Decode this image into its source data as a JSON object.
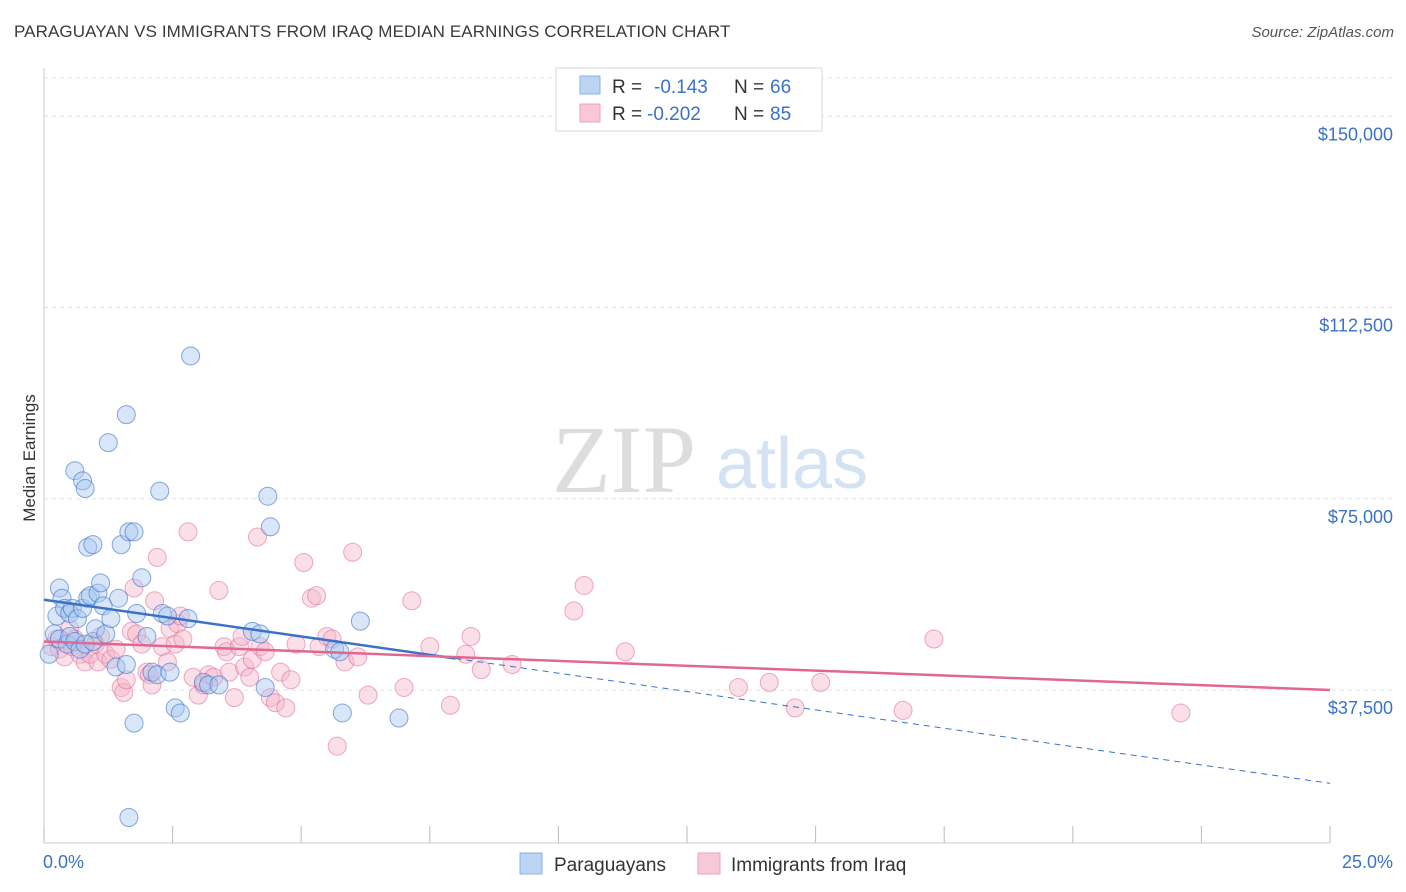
{
  "title": "PARAGUAYAN VS IMMIGRANTS FROM IRAQ MEDIAN EARNINGS CORRELATION CHART",
  "source": "Source: ZipAtlas.com",
  "watermark": {
    "zip": "ZIP",
    "atlas": "atlas"
  },
  "colors": {
    "blue": "#3a72c8",
    "blue_fill": "#a8c8f0",
    "pink": "#e06890",
    "pink_fill": "#f5b8cc",
    "grid": "#e2e2e2",
    "axis_text": "#3a72c8"
  },
  "legend": {
    "row1": {
      "r_label": "R =",
      "r_value": "-0.143",
      "n_label": "N =",
      "n_value": "66"
    },
    "row2": {
      "r_label": "R =",
      "r_value": "-0.202",
      "n_label": "N =",
      "n_value": "85"
    }
  },
  "bottom_legend": {
    "series1": "Paraguayans",
    "series2": "Immigrants from Iraq"
  },
  "chart_data": {
    "type": "scatter",
    "title": "PARAGUAYAN VS IMMIGRANTS FROM IRAQ MEDIAN EARNINGS CORRELATION CHART",
    "xlabel": "",
    "ylabel": "Median Earnings",
    "xlim": [
      0,
      25
    ],
    "ylim": [
      7500,
      157500
    ],
    "x_tick_labels": {
      "min": "0.0%",
      "max": "25.0%"
    },
    "y_ticks": [
      {
        "value": 37500,
        "label": "$37,500"
      },
      {
        "value": 75000,
        "label": "$75,000"
      },
      {
        "value": 112500,
        "label": "$112,500"
      },
      {
        "value": 150000,
        "label": "$150,000"
      }
    ],
    "series": [
      {
        "name": "Paraguayans",
        "color": "#3a72c8",
        "trend": {
          "x0": 0,
          "y0": 55200,
          "x_solid_end": 8.0,
          "x1": 25,
          "y1": 19200
        },
        "points": [
          [
            0.1,
            44500
          ],
          [
            0.2,
            48500
          ],
          [
            0.25,
            52000
          ],
          [
            0.3,
            47500
          ],
          [
            0.3,
            57500
          ],
          [
            0.35,
            55500
          ],
          [
            0.4,
            53500
          ],
          [
            0.45,
            46500
          ],
          [
            0.5,
            48000
          ],
          [
            0.5,
            52500
          ],
          [
            0.55,
            53500
          ],
          [
            0.6,
            47000
          ],
          [
            0.65,
            51500
          ],
          [
            0.7,
            45500
          ],
          [
            0.75,
            53500
          ],
          [
            0.8,
            46500
          ],
          [
            0.85,
            55500
          ],
          [
            0.9,
            56000
          ],
          [
            0.95,
            47000
          ],
          [
            1.0,
            49500
          ],
          [
            0.6,
            80500
          ],
          [
            0.75,
            78500
          ],
          [
            0.8,
            77000
          ],
          [
            0.85,
            65500
          ],
          [
            0.95,
            66000
          ],
          [
            1.05,
            56500
          ],
          [
            1.1,
            58500
          ],
          [
            1.15,
            54000
          ],
          [
            1.2,
            48500
          ],
          [
            1.3,
            51500
          ],
          [
            1.4,
            42000
          ],
          [
            1.45,
            55500
          ],
          [
            1.5,
            66000
          ],
          [
            1.6,
            42500
          ],
          [
            1.65,
            68500
          ],
          [
            1.75,
            68500
          ],
          [
            1.8,
            52500
          ],
          [
            1.9,
            59500
          ],
          [
            2.0,
            48000
          ],
          [
            2.1,
            41000
          ],
          [
            2.2,
            40500
          ],
          [
            2.3,
            52500
          ],
          [
            2.4,
            52000
          ],
          [
            2.45,
            41000
          ],
          [
            2.55,
            34000
          ],
          [
            2.65,
            33000
          ],
          [
            2.8,
            51500
          ],
          [
            3.1,
            39000
          ],
          [
            3.2,
            38500
          ],
          [
            3.4,
            38500
          ],
          [
            4.05,
            49000
          ],
          [
            4.2,
            48500
          ],
          [
            4.3,
            38000
          ],
          [
            4.35,
            75500
          ],
          [
            4.4,
            69500
          ],
          [
            5.65,
            45500
          ],
          [
            5.75,
            45000
          ],
          [
            5.8,
            33000
          ],
          [
            6.15,
            51000
          ],
          [
            6.9,
            32000
          ],
          [
            1.25,
            86000
          ],
          [
            1.6,
            91500
          ],
          [
            2.25,
            76500
          ],
          [
            2.85,
            103000
          ],
          [
            1.65,
            12500
          ],
          [
            1.75,
            31000
          ]
        ]
      },
      {
        "name": "Immigrants from Iraq",
        "color": "#e06890",
        "trend": {
          "x0": 0,
          "y0": 47000,
          "x1": 25,
          "y1": 37500
        },
        "points": [
          [
            0.15,
            46000
          ],
          [
            0.25,
            47500
          ],
          [
            0.3,
            45500
          ],
          [
            0.4,
            44000
          ],
          [
            0.5,
            49500
          ],
          [
            0.55,
            46000
          ],
          [
            0.6,
            47500
          ],
          [
            0.7,
            44500
          ],
          [
            0.8,
            43000
          ],
          [
            0.9,
            44500
          ],
          [
            1.0,
            46500
          ],
          [
            1.05,
            43000
          ],
          [
            1.1,
            48000
          ],
          [
            1.2,
            44500
          ],
          [
            1.3,
            43500
          ],
          [
            1.4,
            45500
          ],
          [
            1.5,
            38000
          ],
          [
            1.55,
            37000
          ],
          [
            1.6,
            39500
          ],
          [
            1.7,
            49000
          ],
          [
            1.75,
            57500
          ],
          [
            1.8,
            48500
          ],
          [
            1.9,
            46500
          ],
          [
            2.0,
            41000
          ],
          [
            2.05,
            40500
          ],
          [
            2.1,
            38500
          ],
          [
            2.15,
            55000
          ],
          [
            2.2,
            63500
          ],
          [
            2.3,
            46000
          ],
          [
            2.4,
            43000
          ],
          [
            2.45,
            49500
          ],
          [
            2.55,
            46500
          ],
          [
            2.6,
            50500
          ],
          [
            2.65,
            52000
          ],
          [
            2.7,
            47500
          ],
          [
            2.8,
            68500
          ],
          [
            2.9,
            40000
          ],
          [
            3.0,
            36500
          ],
          [
            3.1,
            38500
          ],
          [
            3.2,
            40500
          ],
          [
            3.3,
            40000
          ],
          [
            3.4,
            57000
          ],
          [
            3.5,
            46000
          ],
          [
            3.55,
            45000
          ],
          [
            3.6,
            41000
          ],
          [
            3.7,
            36000
          ],
          [
            3.8,
            46000
          ],
          [
            3.85,
            48000
          ],
          [
            3.9,
            42000
          ],
          [
            4.0,
            40000
          ],
          [
            4.05,
            43500
          ],
          [
            4.15,
            67500
          ],
          [
            4.2,
            46000
          ],
          [
            4.3,
            45000
          ],
          [
            4.4,
            36000
          ],
          [
            4.5,
            35000
          ],
          [
            4.6,
            41000
          ],
          [
            4.7,
            34000
          ],
          [
            4.8,
            39500
          ],
          [
            4.9,
            46500
          ],
          [
            5.05,
            62500
          ],
          [
            5.2,
            55500
          ],
          [
            5.3,
            56000
          ],
          [
            5.35,
            46000
          ],
          [
            5.5,
            48000
          ],
          [
            5.6,
            47500
          ],
          [
            5.7,
            26500
          ],
          [
            5.85,
            43000
          ],
          [
            6.0,
            64500
          ],
          [
            6.1,
            44000
          ],
          [
            6.3,
            36500
          ],
          [
            7.0,
            38000
          ],
          [
            7.15,
            55000
          ],
          [
            7.5,
            46000
          ],
          [
            7.9,
            34500
          ],
          [
            8.2,
            44500
          ],
          [
            8.3,
            48000
          ],
          [
            8.5,
            41500
          ],
          [
            9.1,
            42500
          ],
          [
            10.3,
            53000
          ],
          [
            10.5,
            58000
          ],
          [
            11.3,
            45000
          ],
          [
            13.5,
            38000
          ],
          [
            14.1,
            39000
          ],
          [
            14.6,
            34000
          ]
        ]
      }
    ],
    "extra_points": {
      "Immigrants from Iraq": [
        [
          15.1,
          39000
        ],
        [
          16.7,
          33500
        ],
        [
          17.3,
          47500
        ],
        [
          22.1,
          33000
        ]
      ]
    }
  }
}
